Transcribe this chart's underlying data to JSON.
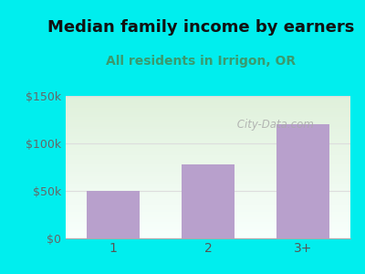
{
  "categories": [
    "1",
    "2",
    "3+"
  ],
  "values": [
    50000,
    78000,
    120000
  ],
  "bar_color": "#b8a0cc",
  "title": "Median family income by earners",
  "subtitle": "All residents in Irrigon, OR",
  "title_fontsize": 13,
  "subtitle_fontsize": 10,
  "subtitle_color": "#3a9a6e",
  "title_color": "#111111",
  "ylim": [
    0,
    150000
  ],
  "yticks": [
    0,
    50000,
    100000,
    150000
  ],
  "ytick_labels": [
    "$0",
    "$50k",
    "$100k",
    "$150k"
  ],
  "bg_outer": "#00eeee",
  "bg_inner_top": "#dff0da",
  "bg_inner_bottom": "#f8fffc",
  "watermark": " City-Data.com",
  "watermark_color": "#aaaaaa",
  "grid_color": "#dddddd",
  "bar_width": 0.55
}
